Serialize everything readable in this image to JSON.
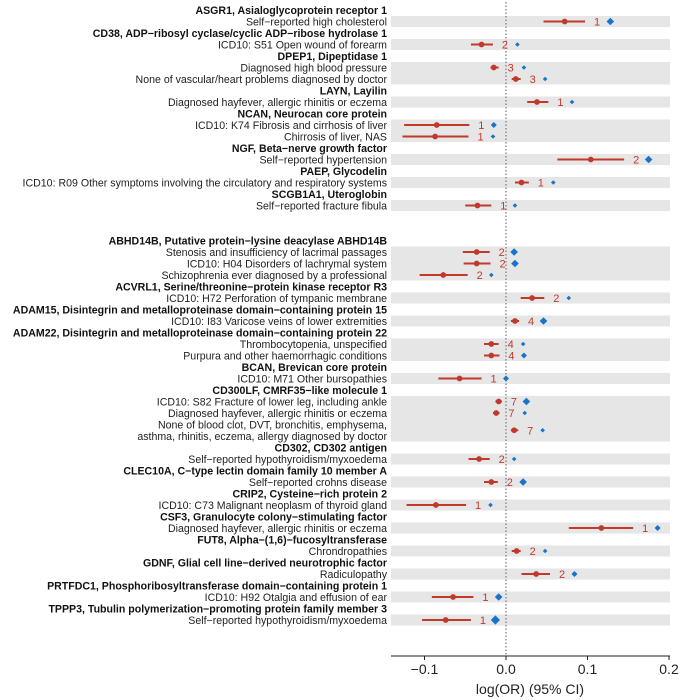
{
  "chart_data": {
    "type": "forest",
    "xlabel": "log(OR) (95% CI)",
    "xlim": [
      -0.13,
      0.2
    ],
    "xticks": [
      -0.1,
      0.0,
      0.1,
      0.2
    ],
    "xtick_labels": [
      "−0.1",
      "0.0",
      "0.1",
      "0.2"
    ],
    "reference_line": 0,
    "colors": {
      "estimate": "#c0392b",
      "secondary": "#1874c8",
      "band": "#e6e6e6"
    },
    "groups": [
      [
        {
          "name": "ASGR1, Asialoglycoprotein receptor 1",
          "traits": [
            {
              "label": "Self−reported high cholesterol",
              "est": 0.072,
              "lo": 0.046,
              "hi": 0.097,
              "n": "1",
              "blue": 0.128,
              "blue_size": "large"
            }
          ]
        },
        {
          "name": "CD38, ADP−ribosyl cyclase/cyclic ADP−ribose hydrolase 1",
          "traits": [
            {
              "label": "ICD10: S51 Open wound of forearm",
              "est": -0.03,
              "lo": -0.043,
              "hi": -0.016,
              "n": "2",
              "blue": 0.014,
              "blue_size": "small"
            }
          ]
        },
        {
          "name": "DPEP1, Dipeptidase 1",
          "traits": [
            {
              "label": "Diagnosed high blood pressure",
              "est": -0.015,
              "lo": -0.019,
              "hi": -0.009,
              "n": "3",
              "blue": 0.022,
              "blue_size": "small"
            },
            {
              "label": "None of vascular/heart problems diagnosed by doctor",
              "est": 0.012,
              "lo": 0.007,
              "hi": 0.018,
              "n": "3",
              "blue": 0.048,
              "blue_size": "small"
            }
          ]
        },
        {
          "name": "LAYN, Layilin",
          "traits": [
            {
              "label": "Diagnosed hayfever, allergic rhinitis or eczema",
              "est": 0.038,
              "lo": 0.026,
              "hi": 0.052,
              "n": "1",
              "blue": 0.081,
              "blue_size": "small"
            }
          ]
        },
        {
          "name": "NCAN, Neurocan core protein",
          "traits": [
            {
              "label": "ICD10: K74 Fibrosis and cirrhosis of liver",
              "est": -0.085,
              "lo": -0.125,
              "hi": -0.045,
              "n": "1",
              "blue": -0.015,
              "blue_size": "medium"
            },
            {
              "label": "Chirrosis of liver, NAS",
              "est": -0.087,
              "lo": -0.127,
              "hi": -0.046,
              "n": "1",
              "blue": -0.016,
              "blue_size": "small"
            }
          ]
        },
        {
          "name": "NGF, Beta−nerve growth factor",
          "traits": [
            {
              "label": "Self−reported hypertension",
              "est": 0.104,
              "lo": 0.063,
              "hi": 0.145,
              "n": "2",
              "blue": 0.175,
              "blue_size": "large"
            }
          ]
        },
        {
          "name": "PAEP, Glycodelin",
          "traits": [
            {
              "label": "ICD10: R09 Other symptoms involving the circulatory and respiratory systems",
              "est": 0.019,
              "lo": 0.011,
              "hi": 0.028,
              "n": "1",
              "blue": 0.058,
              "blue_size": "small"
            }
          ]
        },
        {
          "name": "SCGB1A1, Uteroglobin",
          "traits": [
            {
              "label": "Self−reported fracture fibula",
              "est": -0.035,
              "lo": -0.05,
              "hi": -0.018,
              "n": "1",
              "blue": 0.011,
              "blue_size": "small"
            }
          ]
        }
      ],
      [
        {
          "name": "ABHD14B, Putative protein−lysine deacylase ABHD14B",
          "traits": [
            {
              "label": "Stenosis and insufficiency of lacrimal passages",
              "est": -0.036,
              "lo": -0.053,
              "hi": -0.02,
              "n": "2",
              "blue": 0.01,
              "blue_size": "large"
            },
            {
              "label": "ICD10: H04 Disorders of lachrymal system",
              "est": -0.036,
              "lo": -0.052,
              "hi": -0.019,
              "n": "2",
              "blue": 0.011,
              "blue_size": "large"
            },
            {
              "label": "Schizophrenia ever diagnosed by a professional",
              "est": -0.077,
              "lo": -0.106,
              "hi": -0.047,
              "n": "2",
              "blue": -0.018,
              "blue_size": "small"
            }
          ]
        },
        {
          "name": "ACVRL1, Serine/threonine−protein kinase receptor R3",
          "traits": [
            {
              "label": "ICD10: H72 Perforation of tympanic membrane",
              "est": 0.032,
              "lo": 0.018,
              "hi": 0.047,
              "n": "2",
              "blue": 0.077,
              "blue_size": "small"
            }
          ]
        },
        {
          "name": "ADAM15, Disintegrin and metalloproteinase domain−containing protein 15",
          "traits": [
            {
              "label": "ICD10: I83 Varicose veins of lower extremities",
              "est": 0.011,
              "lo": 0.006,
              "hi": 0.016,
              "n": "4",
              "blue": 0.046,
              "blue_size": "large"
            }
          ]
        },
        {
          "name": "ADAM22, Disintegrin and metalloproteinase domain−containing protein 22",
          "traits": [
            {
              "label": "Thrombocytopenia, unspecified",
              "est": -0.018,
              "lo": -0.027,
              "hi": -0.009,
              "n": "4",
              "blue": 0.021,
              "blue_size": "small"
            },
            {
              "label": "Purpura and other haemorrhagic conditions",
              "est": -0.018,
              "lo": -0.027,
              "hi": -0.008,
              "n": "4",
              "blue": 0.022,
              "blue_size": "medium"
            }
          ]
        },
        {
          "name": "BCAN, Brevican core protein",
          "traits": [
            {
              "label": "ICD10: M71 Other bursopathies",
              "est": -0.057,
              "lo": -0.083,
              "hi": -0.03,
              "n": "1",
              "blue": 0.0,
              "blue_size": "medium"
            }
          ]
        },
        {
          "name": "CD300LF, CMRF35−like molecule 1",
          "traits": [
            {
              "label": "ICD10: S82 Fracture of lower leg, including ankle",
              "est": -0.009,
              "lo": -0.013,
              "hi": -0.005,
              "n": "7",
              "blue": 0.025,
              "blue_size": "large"
            },
            {
              "label": "Diagnosed hayfever, allergic rhinitis or eczema",
              "est": -0.012,
              "lo": -0.016,
              "hi": -0.008,
              "n": "7",
              "blue": 0.023,
              "blue_size": "small"
            },
            {
              "label": "None of blood clot, DVT, bronchitis, emphysema,\nasthma, rhinitis, eczema, allergy diagnosed by doctor",
              "est": 0.01,
              "lo": 0.006,
              "hi": 0.015,
              "n": "7",
              "blue": 0.045,
              "blue_size": "small"
            }
          ]
        },
        {
          "name": "CD302, CD302 antigen",
          "traits": [
            {
              "label": "Self−reported hypothyroidism/myxoedema",
              "est": -0.033,
              "lo": -0.046,
              "hi": -0.02,
              "n": "2",
              "blue": 0.01,
              "blue_size": "small"
            }
          ]
        },
        {
          "name": "CLEC10A, C−type lectin domain family 10 member A",
          "traits": [
            {
              "label": "Self−reported crohns disease",
              "est": -0.018,
              "lo": -0.027,
              "hi": -0.01,
              "n": "2",
              "blue": 0.021,
              "blue_size": "large"
            }
          ]
        },
        {
          "name": "CRIP2, Cysteine−rich protein 2",
          "traits": [
            {
              "label": "ICD10: C73 Malignant neoplasm of thyroid gland",
              "est": -0.086,
              "lo": -0.122,
              "hi": -0.049,
              "n": "1",
              "blue": -0.019,
              "blue_size": "small"
            }
          ]
        },
        {
          "name": "CSF3, Granulocyte colony−stimulating factor",
          "traits": [
            {
              "label": "Diagnosed hayfever, allergic rhinitis or eczema",
              "est": 0.117,
              "lo": 0.077,
              "hi": 0.156,
              "n": "1",
              "blue": 0.186,
              "blue_size": "medium"
            }
          ]
        },
        {
          "name": "FUT8, Alpha−(1,6)−fucosyltransferase",
          "traits": [
            {
              "label": "Chrondropathies",
              "est": 0.013,
              "lo": 0.007,
              "hi": 0.018,
              "n": "2",
              "blue": 0.048,
              "blue_size": "small"
            }
          ]
        },
        {
          "name": "GDNF, Glial cell line−derived neurotrophic factor",
          "traits": [
            {
              "label": "Radiculopathy",
              "est": 0.037,
              "lo": 0.019,
              "hi": 0.054,
              "n": "2",
              "blue": 0.084,
              "blue_size": "medium"
            }
          ]
        },
        {
          "name": "PRTFDC1, Phosphoribosyltransferase domain−containing protein 1",
          "traits": [
            {
              "label": "ICD10: H92 Otalgia and effusion of ear",
              "est": -0.065,
              "lo": -0.091,
              "hi": -0.04,
              "n": "1",
              "blue": -0.009,
              "blue_size": "large"
            }
          ]
        },
        {
          "name": "TPPP3, Tubulin polymerization−promoting protein family member 3",
          "traits": [
            {
              "label": "Self−reported hypothyroidism/myxoedema",
              "est": -0.074,
              "lo": -0.103,
              "hi": -0.043,
              "n": "1",
              "blue": -0.013,
              "blue_size": "xlarge"
            }
          ]
        }
      ]
    ]
  }
}
